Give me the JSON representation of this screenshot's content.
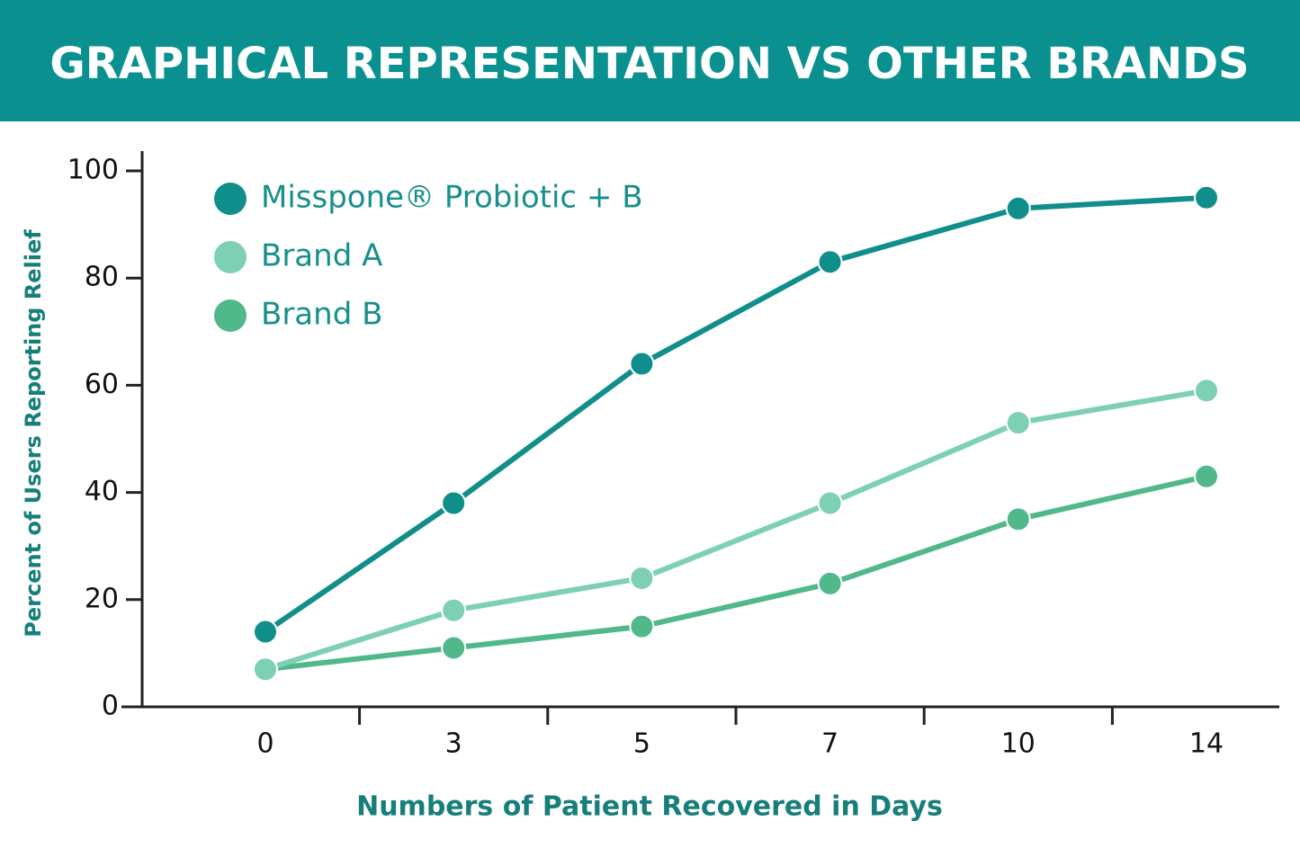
{
  "chart_data": {
    "type": "line",
    "title": "GRAPHICAL REPRESENTATION VS OTHER BRANDS",
    "x_label": "Numbers of Patient Recovered in Days",
    "y_label": "Percent of Users Reporting Relief",
    "categories": [
      "0",
      "3",
      "5",
      "7",
      "10",
      "14"
    ],
    "series": [
      {
        "name": "Misspone® Probiotic + B",
        "color": "#108e8b",
        "values": [
          14,
          38,
          64,
          83,
          93,
          95
        ]
      },
      {
        "name": "Brand A",
        "color": "#7dd0b3",
        "values": [
          7,
          18,
          24,
          38,
          53,
          59
        ]
      },
      {
        "name": "Brand B",
        "color": "#50b88b",
        "values": [
          7,
          11,
          15,
          23,
          35,
          43
        ]
      }
    ],
    "ylim": [
      0,
      100
    ],
    "yticks": [
      0,
      20,
      40,
      60,
      80,
      100
    ],
    "legend": "top-left"
  }
}
